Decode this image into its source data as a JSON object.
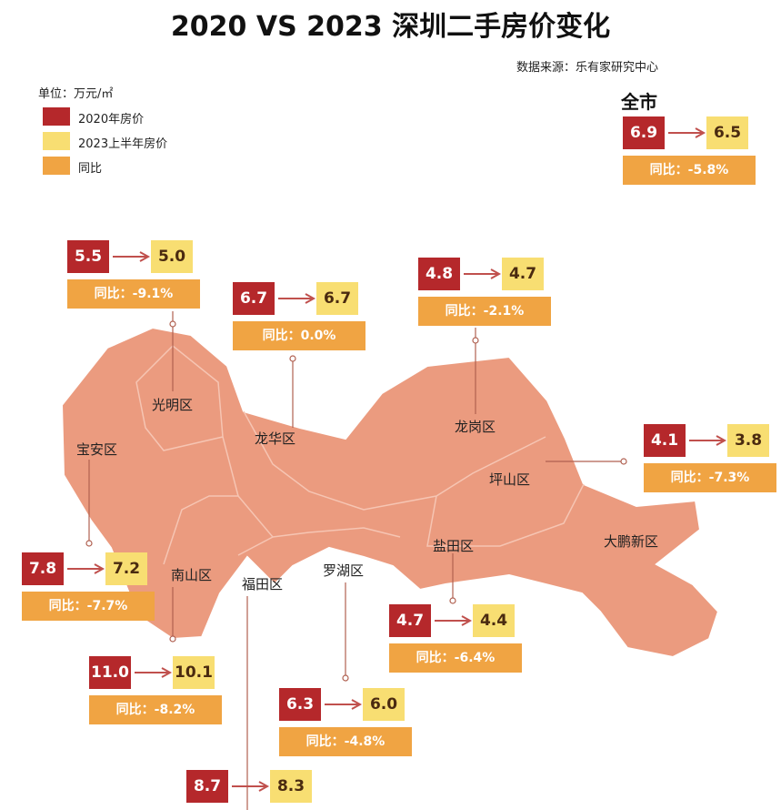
{
  "header": {
    "title": "2020 VS 2023 深圳二手房价变化",
    "source": "数据来源：乐有家研究中心"
  },
  "legend": {
    "unit": "单位：万元/㎡",
    "items": [
      "2020年房价",
      "2023上半年房价",
      "同比"
    ]
  },
  "city": {
    "name": "全市",
    "price_2020": "6.9",
    "price_2023": "6.5",
    "yoy": "同比：-5.8%"
  },
  "districts": [
    {
      "name": "光明区",
      "price_2020": "5.5",
      "price_2023": "5.0",
      "yoy": "同比：-9.1%"
    },
    {
      "name": "龙华区",
      "price_2020": "6.7",
      "price_2023": "6.7",
      "yoy": "同比：0.0%"
    },
    {
      "name": "龙岗区",
      "price_2020": "4.8",
      "price_2023": "4.7",
      "yoy": "同比：-2.1%"
    },
    {
      "name": "坪山区",
      "price_2020": "4.1",
      "price_2023": "3.8",
      "yoy": "同比：-7.3%"
    },
    {
      "name": "宝安区",
      "price_2020": "7.8",
      "price_2023": "7.2",
      "yoy": "同比：-7.7%"
    },
    {
      "name": "盐田区",
      "price_2020": "4.7",
      "price_2023": "4.4",
      "yoy": "同比：-6.4%"
    },
    {
      "name": "南山区",
      "price_2020": "11.0",
      "price_2023": "10.1",
      "yoy": "同比：-8.2%"
    },
    {
      "name": "罗湖区",
      "price_2020": "6.3",
      "price_2023": "6.0",
      "yoy": "同比：-4.8%"
    },
    {
      "name": "福田区",
      "price_2020": "8.7",
      "price_2023": "8.3"
    },
    {
      "name": "大鹏新区"
    }
  ]
}
